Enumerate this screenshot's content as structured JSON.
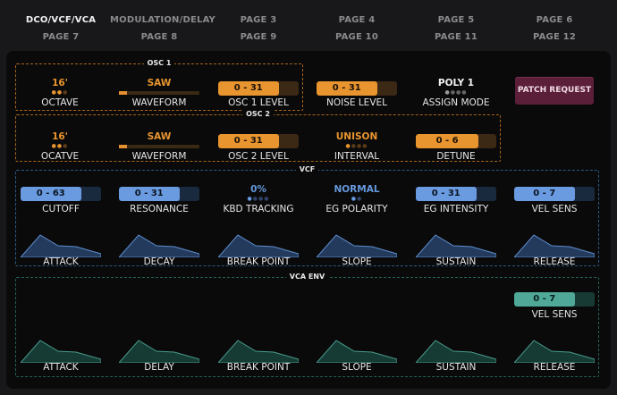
{
  "tabs": {
    "row1": [
      "DCO/VCF/VCA",
      "MODULATION/DELAY",
      "PAGE 3",
      "PAGE 4",
      "PAGE 5",
      "PAGE 6"
    ],
    "row2": [
      "PAGE 7",
      "PAGE 8",
      "PAGE 9",
      "PAGE 10",
      "PAGE 11",
      "PAGE 12"
    ],
    "active": "DCO/VCF/VCA"
  },
  "osc1": {
    "title": "OSC 1",
    "octave": {
      "value": "16'",
      "label": "OCTAVE"
    },
    "waveform": {
      "value": "SAW",
      "label": "WAVEFORM",
      "level": 0.1
    },
    "level": {
      "range": "0 - 31",
      "label": "OSC 1 LEVEL",
      "fill": 0.75
    },
    "noise": {
      "range": "0 - 31",
      "label": "NOISE LEVEL",
      "fill": 0.75
    },
    "assign": {
      "value": "POLY 1",
      "label": "ASSIGN MODE"
    }
  },
  "osc2": {
    "title": "OSC 2",
    "octave": {
      "value": "16'",
      "label": "OCATVE"
    },
    "waveform": {
      "value": "SAW",
      "label": "WAVEFORM",
      "level": 0.1
    },
    "level": {
      "range": "0 - 31",
      "label": "OSC 2 LEVEL",
      "fill": 0.75
    },
    "interval": {
      "value": "UNISON",
      "label": "INTERVAL"
    },
    "detune": {
      "range": "0 - 6",
      "label": "DETUNE",
      "fill": 0.78
    }
  },
  "patch_request": "PATCH REQUEST",
  "vcf": {
    "title": "VCF",
    "cutoff": {
      "range": "0 - 63",
      "label": "CUTOFF",
      "fill": 0.75
    },
    "resonance": {
      "range": "0 - 31",
      "label": "RESONANCE",
      "fill": 0.75
    },
    "kbd": {
      "value": "0%",
      "label": "KBD TRACKING"
    },
    "polarity": {
      "value": "NORMAL",
      "label": "EG POLARITY"
    },
    "eg_intensity": {
      "range": "0 - 31",
      "label": "EG INTENSITY",
      "fill": 0.75
    },
    "vel_sens": {
      "range": "0 - 7",
      "label": "VEL SENS",
      "fill": 0.75
    },
    "env_labels": [
      "ATTACK",
      "DECAY",
      "BREAK POINT",
      "SLOPE",
      "SUSTAIN",
      "RELEASE"
    ]
  },
  "vca": {
    "title": "VCA ENV",
    "vel_sens": {
      "range": "0 - 7",
      "label": "VEL SENS",
      "fill": 0.75
    },
    "env_labels": [
      "ATTACK",
      "DELAY",
      "BREAK POINT",
      "SLOPE",
      "SUSTAIN",
      "RELEASE"
    ]
  },
  "colors": {
    "osc_accent": "#e8952f",
    "vcf_accent": "#6a9be0",
    "vca_accent": "#4fa898",
    "patch_button": "#5c1f3a"
  }
}
